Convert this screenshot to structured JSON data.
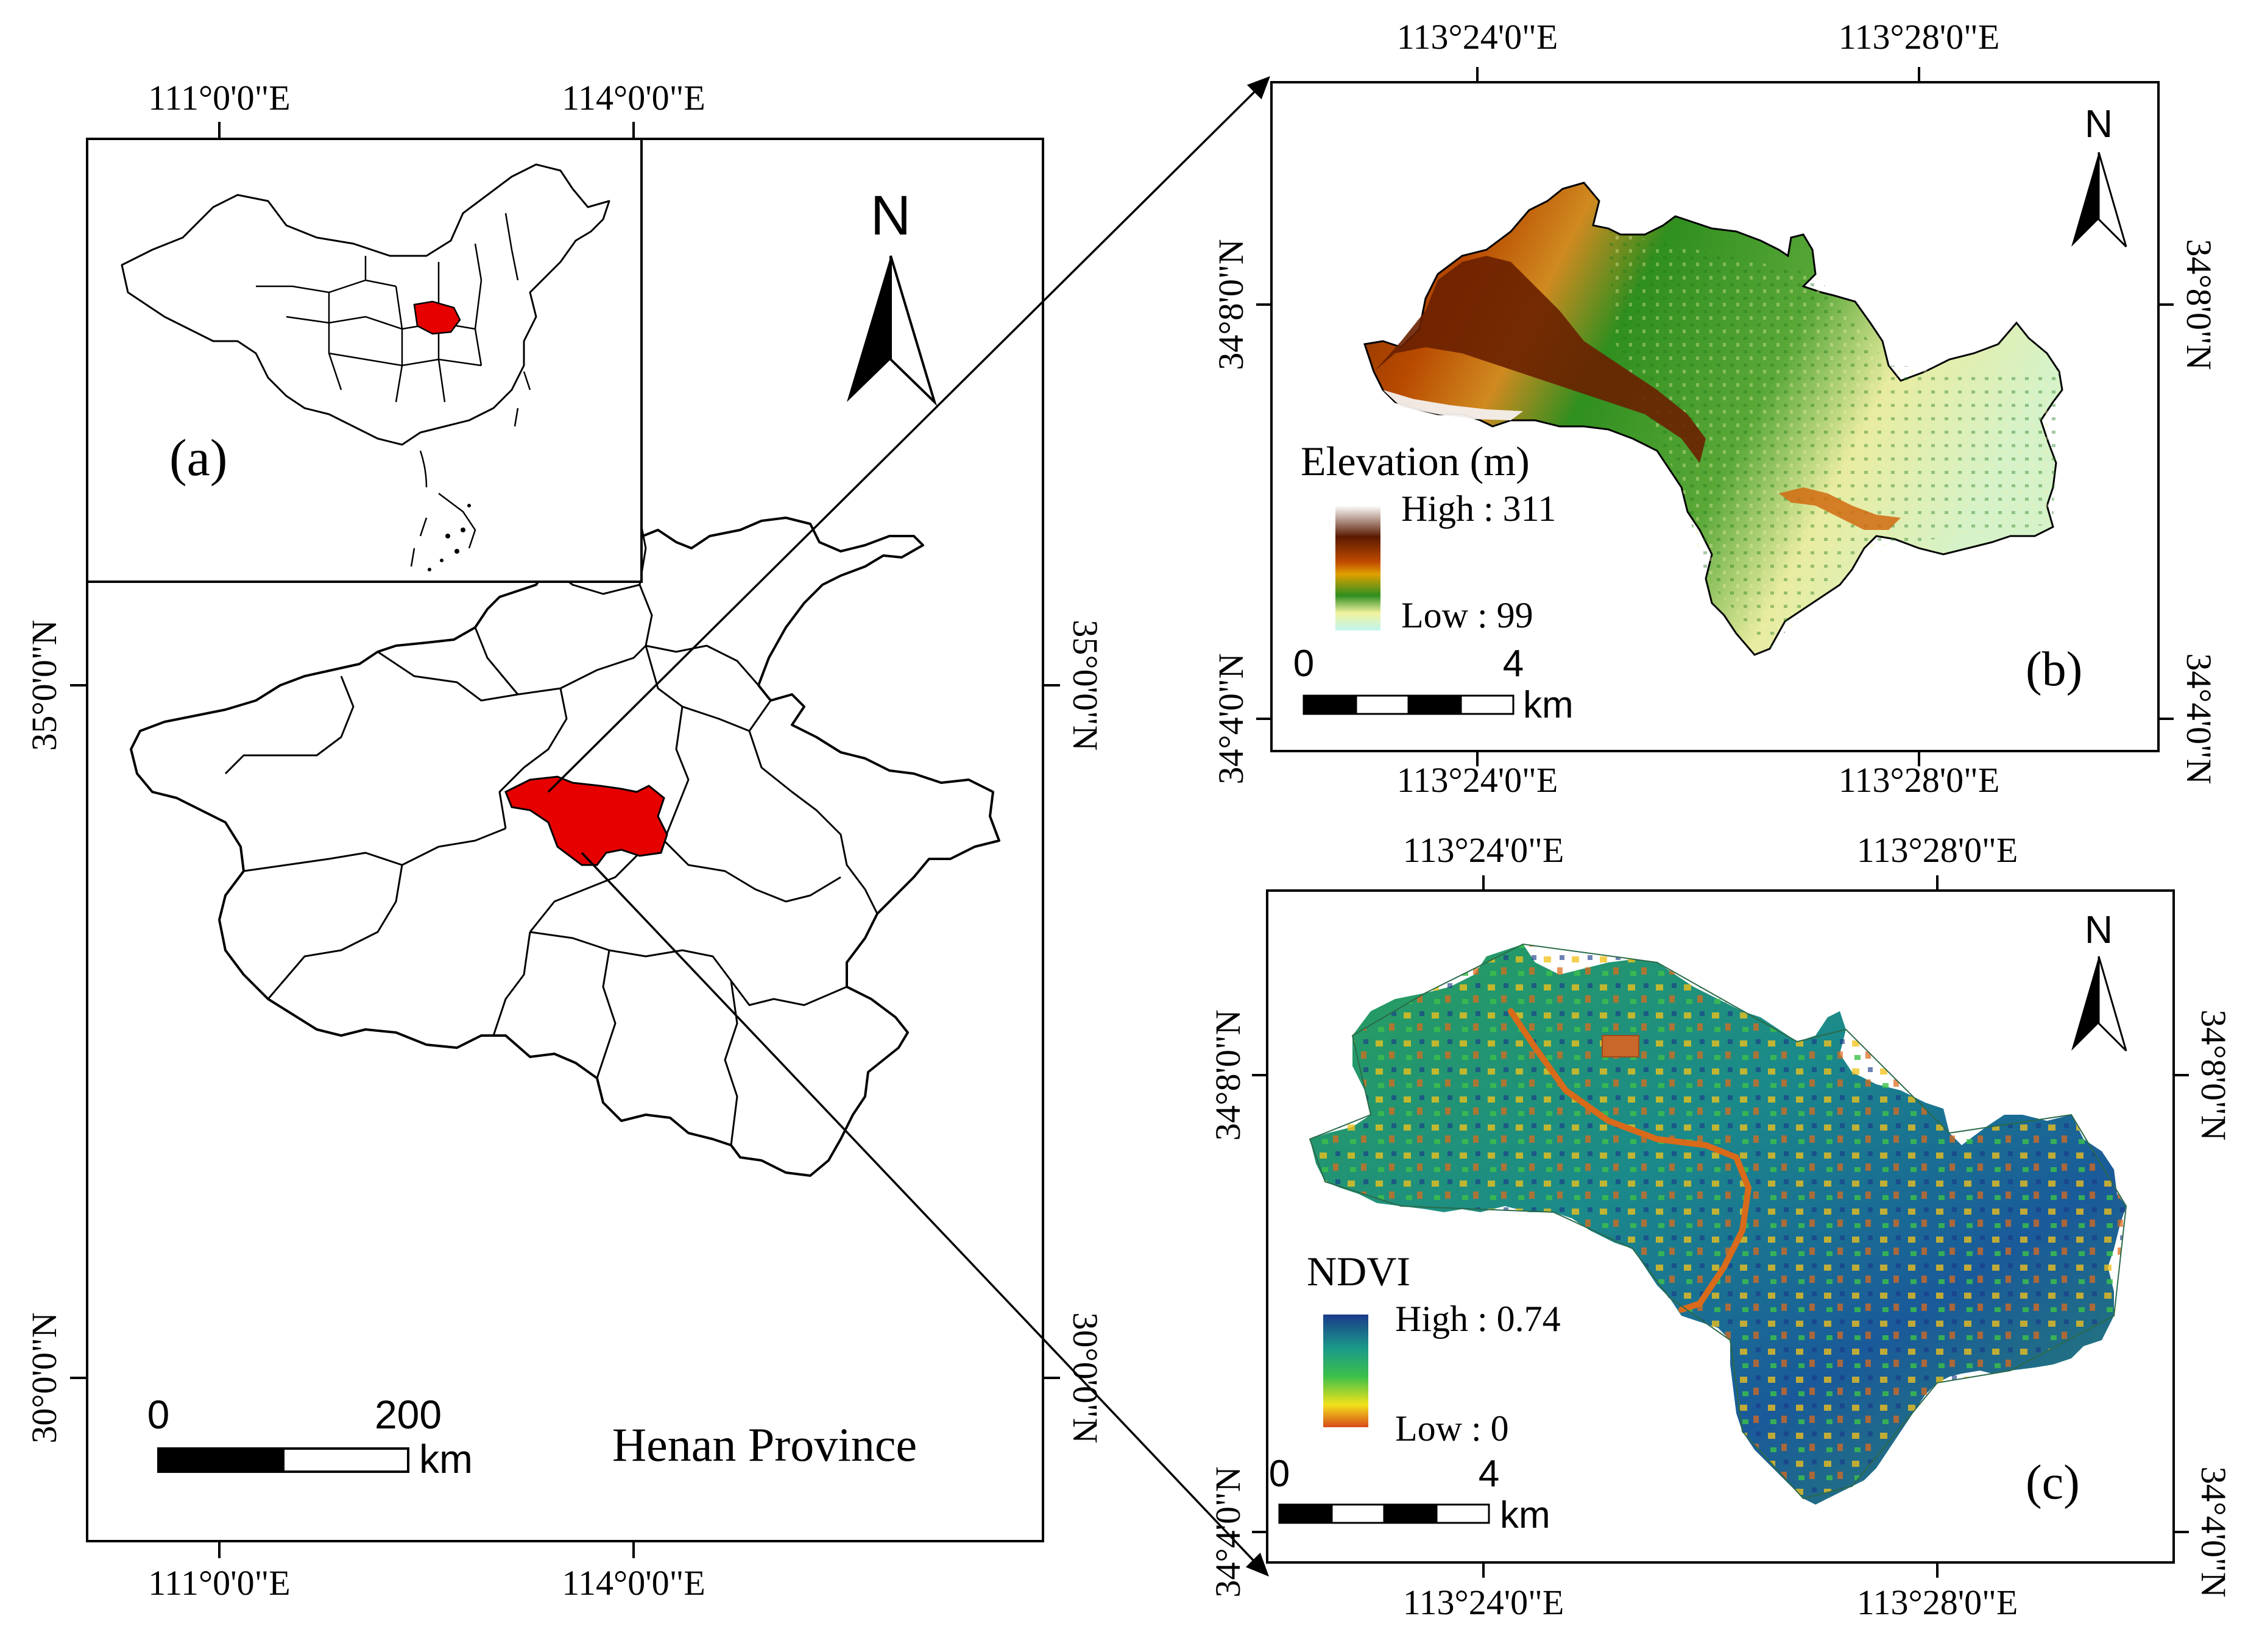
{
  "main_map": {
    "top_ticks": [
      "111°0'0\"E",
      "114°0'0\"E"
    ],
    "bottom_ticks": [
      "111°0'0\"E",
      "114°0'0\"E"
    ],
    "left_ticks": [
      "35°0'0\"N",
      "30°0'0\"N"
    ],
    "right_ticks": [
      "35°0'0\"N",
      "30°0'0\"N"
    ],
    "north_label": "N",
    "scale_start": "0",
    "scale_end": "200",
    "scale_unit": "km",
    "title": "Henan Province",
    "highlight_color": "#e60000"
  },
  "inset_a": {
    "label": "(a)",
    "highlight_color": "#e60000"
  },
  "panel_b": {
    "label": "(b)",
    "top_ticks": [
      "113°24'0\"E",
      "113°28'0\"E"
    ],
    "bottom_ticks": [
      "113°24'0\"E",
      "113°28'0\"E"
    ],
    "left_ticks": [
      "34°8'0\"N",
      "34°4'0\"N"
    ],
    "right_ticks": [
      "34°8'0\"N",
      "34°4'0\"N"
    ],
    "north_label": "N",
    "legend_title": "Elevation (m)",
    "legend_high": "High : 311",
    "legend_low": "Low : 99",
    "high_value": 311,
    "low_value": 99,
    "scale_start": "0",
    "scale_end": "4",
    "scale_unit": "km",
    "colormap": [
      "#ffffff",
      "#5a1a00",
      "#b53a00",
      "#e08a00",
      "#2f8f1f",
      "#f2f2a0",
      "#bff5f0"
    ]
  },
  "panel_c": {
    "label": "(c)",
    "top_ticks": [
      "113°24'0\"E",
      "113°28'0\"E"
    ],
    "bottom_ticks": [
      "113°24'0\"E",
      "113°28'0\"E"
    ],
    "left_ticks": [
      "34°8'0\"N",
      "34°4'0\"N"
    ],
    "right_ticks": [
      "34°8'0\"N",
      "34°4'0\"N"
    ],
    "north_label": "N",
    "legend_title": "NDVI",
    "legend_high": "High : 0.74",
    "legend_low": "Low : 0",
    "high_value": 0.74,
    "low_value": 0,
    "scale_start": "0",
    "scale_end": "4",
    "scale_unit": "km",
    "colormap": [
      "#1a3a8a",
      "#1b9a8a",
      "#3cc04a",
      "#f2e21a",
      "#d94a1a"
    ]
  }
}
